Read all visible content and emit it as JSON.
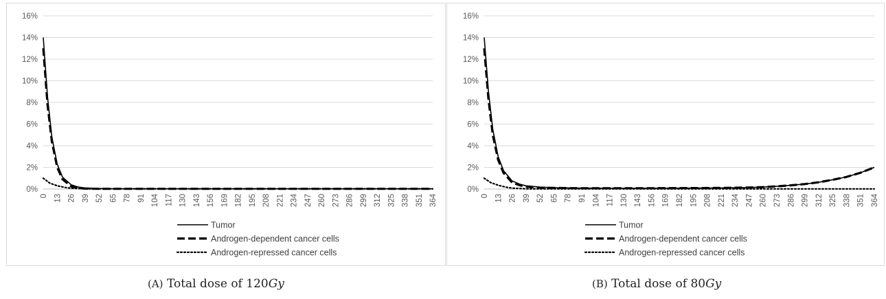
{
  "chart_data": [
    {
      "type": "line",
      "caption": {
        "tag": "(A)",
        "text": "Total dose of 120",
        "unit": "Gy"
      },
      "ylim": [
        0,
        16
      ],
      "y_ticks": [
        "0%",
        "2%",
        "4%",
        "6%",
        "8%",
        "10%",
        "12%",
        "14%",
        "16%"
      ],
      "x_ticks": [
        "0",
        "13",
        "26",
        "39",
        "52",
        "65",
        "78",
        "91",
        "104",
        "117",
        "130",
        "143",
        "156",
        "169",
        "182",
        "195",
        "208",
        "221",
        "234",
        "247",
        "260",
        "273",
        "286",
        "299",
        "312",
        "325",
        "338",
        "351",
        "364"
      ],
      "xlim": [
        0,
        364
      ],
      "grid": true,
      "legend_position": "bottom",
      "series": [
        {
          "name": "Tumor",
          "style": "solid",
          "color": "#000000",
          "x": [
            0,
            4,
            8,
            13,
            18,
            26,
            32,
            39,
            52,
            65,
            104,
            364
          ],
          "y": [
            14.0,
            8.5,
            4.8,
            2.3,
            1.1,
            0.4,
            0.2,
            0.1,
            0.05,
            0.03,
            0.03,
            0.03
          ]
        },
        {
          "name": "Androgen-dependent cancer cells",
          "style": "dashed",
          "color": "#000000",
          "x": [
            0,
            4,
            8,
            13,
            18,
            26,
            32,
            39,
            52,
            65,
            104,
            364
          ],
          "y": [
            13.0,
            7.8,
            4.4,
            2.0,
            0.9,
            0.25,
            0.1,
            0.04,
            0.02,
            0.02,
            0.02,
            0.02
          ]
        },
        {
          "name": "Androgen-repressed cancer cells",
          "style": "dotted",
          "color": "#000000",
          "x": [
            0,
            6,
            13,
            20,
            26,
            39,
            52,
            364
          ],
          "y": [
            1.0,
            0.55,
            0.3,
            0.15,
            0.07,
            0.02,
            0.01,
            0.01
          ]
        }
      ]
    },
    {
      "type": "line",
      "caption": {
        "tag": "(B)",
        "text": "Total dose of 80",
        "unit": "Gy"
      },
      "ylim": [
        0,
        16
      ],
      "y_ticks": [
        "0%",
        "2%",
        "4%",
        "6%",
        "8%",
        "10%",
        "12%",
        "14%",
        "16%"
      ],
      "x_ticks": [
        "0",
        "13",
        "26",
        "39",
        "52",
        "65",
        "78",
        "91",
        "104",
        "117",
        "130",
        "143",
        "156",
        "169",
        "182",
        "195",
        "208",
        "221",
        "234",
        "247",
        "260",
        "273",
        "286",
        "299",
        "312",
        "325",
        "338",
        "351",
        "364"
      ],
      "xlim": [
        0,
        364
      ],
      "grid": true,
      "legend_position": "bottom",
      "series": [
        {
          "name": "Tumor",
          "style": "solid",
          "color": "#000000",
          "x": [
            0,
            4,
            8,
            13,
            18,
            26,
            33,
            39,
            52,
            65,
            91,
            130,
            182,
            221,
            247,
            260,
            273,
            286,
            299,
            312,
            325,
            338,
            351,
            364
          ],
          "y": [
            14.0,
            9.0,
            5.5,
            3.0,
            1.7,
            0.75,
            0.45,
            0.3,
            0.18,
            0.12,
            0.08,
            0.07,
            0.08,
            0.1,
            0.14,
            0.18,
            0.25,
            0.34,
            0.46,
            0.62,
            0.85,
            1.12,
            1.5,
            2.0
          ]
        },
        {
          "name": "Androgen-dependent cancer cells",
          "style": "dashed",
          "color": "#000000",
          "x": [
            0,
            4,
            8,
            13,
            18,
            26,
            33,
            39,
            52,
            65,
            91,
            130,
            182,
            221,
            247,
            260,
            273,
            286,
            299,
            312,
            325,
            338,
            351,
            364
          ],
          "y": [
            13.0,
            8.3,
            5.0,
            2.7,
            1.5,
            0.6,
            0.35,
            0.22,
            0.13,
            0.1,
            0.07,
            0.07,
            0.08,
            0.1,
            0.14,
            0.18,
            0.25,
            0.34,
            0.46,
            0.62,
            0.85,
            1.12,
            1.5,
            2.0
          ]
        },
        {
          "name": "Androgen-repressed cancer cells",
          "style": "dotted",
          "color": "#000000",
          "x": [
            0,
            6,
            13,
            20,
            26,
            39,
            52,
            364
          ],
          "y": [
            1.0,
            0.6,
            0.35,
            0.18,
            0.08,
            0.02,
            0.01,
            0.01
          ]
        }
      ]
    }
  ]
}
